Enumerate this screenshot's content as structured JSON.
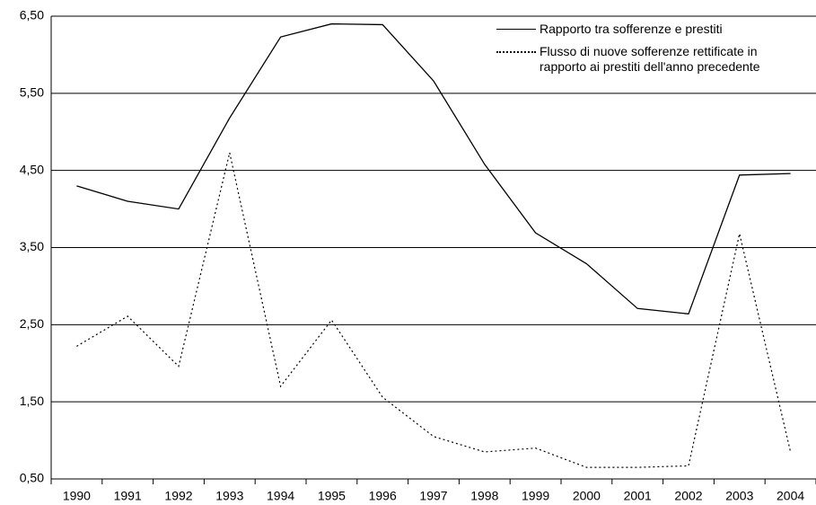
{
  "chart_data": {
    "type": "line",
    "categories": [
      "1990",
      "1991",
      "1992",
      "1993",
      "1994",
      "1995",
      "1996",
      "1997",
      "1998",
      "1999",
      "2000",
      "2001",
      "2002",
      "2003",
      "2004"
    ],
    "series": [
      {
        "name": "Rapporto tra sofferenze e prestiti",
        "color": "#000000",
        "dash": "solid",
        "values": [
          4.3,
          4.1,
          4.0,
          5.18,
          6.23,
          6.4,
          6.39,
          5.66,
          4.58,
          3.69,
          3.29,
          2.71,
          2.64,
          4.44,
          4.46
        ]
      },
      {
        "name": "Flusso di nuove sofferenze rettificate in rapporto ai prestiti dell'anno precedente",
        "color": "#000000",
        "dash": "dotted",
        "values": [
          2.22,
          2.61,
          1.96,
          4.73,
          1.7,
          2.56,
          1.56,
          1.05,
          0.85,
          0.9,
          0.65,
          0.65,
          0.67,
          3.68,
          0.85
        ]
      }
    ],
    "ylim": [
      0.5,
      6.5
    ],
    "yticks": [
      {
        "value": 0.5,
        "label": "0,50"
      },
      {
        "value": 1.5,
        "label": "1,50"
      },
      {
        "value": 2.5,
        "label": "2,50"
      },
      {
        "value": 3.5,
        "label": "3,50"
      },
      {
        "value": 4.5,
        "label": "4,50"
      },
      {
        "value": 5.5,
        "label": "5,50"
      },
      {
        "value": 6.5,
        "label": "6,50"
      }
    ],
    "grid": true,
    "legend": "top-right"
  }
}
